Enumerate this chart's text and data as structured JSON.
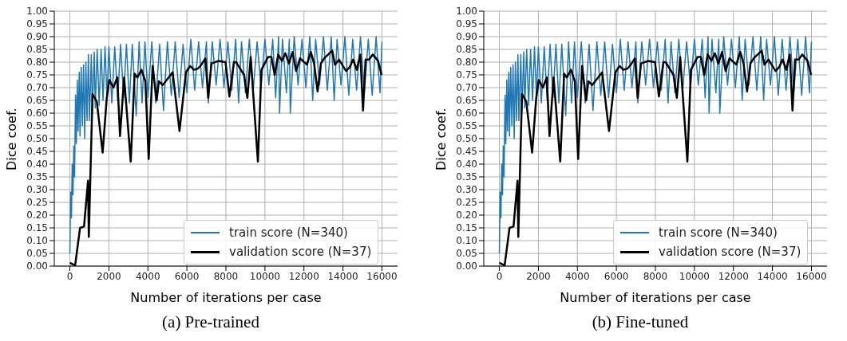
{
  "chart_data": [
    {
      "type": "line",
      "title": "(a) Pre-trained",
      "xlabel": "Number of iterations per case",
      "ylabel": "Dice coef.",
      "xlim": [
        -800,
        16800
      ],
      "xticks": [
        0,
        2000,
        4000,
        6000,
        8000,
        10000,
        12000,
        14000,
        16000
      ],
      "ylim": [
        0,
        1
      ],
      "yticks": [
        {
          "value": 0,
          "label": "0.00"
        },
        {
          "value": 0.05,
          "label": "0.05"
        },
        {
          "value": 0.1,
          "label": "0.10"
        },
        {
          "value": 0.15,
          "label": "0.15"
        },
        {
          "value": 0.2,
          "label": "0.20"
        },
        {
          "value": 0.25,
          "label": "0.25"
        },
        {
          "value": 0.3,
          "label": "0.30"
        },
        {
          "value": 0.35,
          "label": "0.35"
        },
        {
          "value": 0.4,
          "label": "0.40"
        },
        {
          "value": 0.45,
          "label": "0.45"
        },
        {
          "value": 0.5,
          "label": "0.50"
        },
        {
          "value": 0.55,
          "label": "0.55"
        },
        {
          "value": 0.6,
          "label": "0.60"
        },
        {
          "value": 0.65,
          "label": "0.65"
        },
        {
          "value": 0.7,
          "label": "0.70"
        },
        {
          "value": 0.75,
          "label": "0.75"
        },
        {
          "value": 0.8,
          "label": "0.80"
        },
        {
          "value": 0.85,
          "label": "0.85"
        },
        {
          "value": 0.9,
          "label": "0.90"
        },
        {
          "value": 0.95,
          "label": "0.95"
        },
        {
          "value": 1,
          "label": "1.00"
        }
      ],
      "grid": true,
      "legend": "bottom right",
      "marker": "none",
      "line_style": "solid",
      "series": [
        {
          "name": "train score (N=340)",
          "color": "#1f77b4",
          "x": [
            0,
            40,
            80,
            120,
            160,
            200,
            240,
            290,
            330,
            380,
            420,
            480,
            520,
            580,
            640,
            700,
            760,
            820,
            880,
            950,
            1000,
            1100,
            1150,
            1250,
            1300,
            1400,
            1500,
            1600,
            1700,
            1800,
            1900,
            2000,
            2150,
            2300,
            2450,
            2600,
            2750,
            2900,
            3050,
            3200,
            3400,
            3550,
            3700,
            3850,
            4000,
            4200,
            4400,
            4600,
            4800,
            5000,
            5200,
            5400,
            5600,
            5800,
            6000,
            6200,
            6400,
            6600,
            6800,
            7000,
            7100,
            7300,
            7500,
            7700,
            7900,
            8100,
            8300,
            8500,
            8650,
            8800,
            9000,
            9200,
            9400,
            9600,
            9800,
            10000,
            10200,
            10400,
            10550,
            10700,
            10750,
            10900,
            11100,
            11250,
            11300,
            11500,
            11700,
            11900,
            12100,
            12300,
            12450,
            12600,
            12800,
            13000,
            13200,
            13400,
            13550,
            13700,
            13900,
            14100,
            14300,
            14500,
            14700,
            14900,
            15100,
            15300,
            15500,
            15700,
            15900,
            16000
          ],
          "values": [
            0.05,
            0.29,
            0.19,
            0.4,
            0.28,
            0.47,
            0.35,
            0.67,
            0.48,
            0.73,
            0.53,
            0.76,
            0.51,
            0.78,
            0.55,
            0.79,
            0.5,
            0.8,
            0.57,
            0.83,
            0.57,
            0.83,
            0.6,
            0.84,
            0.62,
            0.85,
            0.63,
            0.85,
            0.65,
            0.86,
            0.66,
            0.86,
            0.64,
            0.86,
            0.65,
            0.87,
            0.66,
            0.87,
            0.64,
            0.87,
            0.59,
            0.88,
            0.64,
            0.88,
            0.66,
            0.88,
            0.64,
            0.87,
            0.61,
            0.88,
            0.67,
            0.88,
            0.66,
            0.87,
            0.68,
            0.89,
            0.69,
            0.88,
            0.7,
            0.88,
            0.64,
            0.88,
            0.71,
            0.89,
            0.7,
            0.88,
            0.69,
            0.89,
            0.64,
            0.88,
            0.68,
            0.89,
            0.69,
            0.88,
            0.7,
            0.89,
            0.71,
            0.89,
            0.66,
            0.9,
            0.6,
            0.89,
            0.68,
            0.89,
            0.6,
            0.9,
            0.71,
            0.89,
            0.7,
            0.9,
            0.65,
            0.89,
            0.71,
            0.9,
            0.69,
            0.9,
            0.65,
            0.89,
            0.71,
            0.9,
            0.67,
            0.89,
            0.69,
            0.9,
            0.68,
            0.89,
            0.67,
            0.9,
            0.68,
            0.88
          ]
        },
        {
          "name": "validation score (N=37)",
          "color": "#000000",
          "x": [
            0,
            270,
            520,
            725,
            930,
            970,
            1160,
            1380,
            1680,
            1890,
            2020,
            2230,
            2430,
            2570,
            2780,
            3120,
            3320,
            3460,
            3670,
            3870,
            4040,
            4240,
            4450,
            4560,
            4760,
            5270,
            5620,
            5950,
            6170,
            6360,
            6570,
            6740,
            6950,
            7090,
            7260,
            7640,
            7980,
            8180,
            8410,
            8520,
            8930,
            9100,
            9270,
            9640,
            9820,
            10160,
            10330,
            10500,
            10680,
            10870,
            11050,
            11230,
            11420,
            11600,
            11800,
            12150,
            12350,
            12520,
            12700,
            12870,
            13040,
            13450,
            13590,
            13800,
            14160,
            14340,
            14520,
            14710,
            14890,
            15030,
            15160,
            15340,
            15530,
            15800,
            15980
          ],
          "values": [
            0.013,
            0.003,
            0.15,
            0.155,
            0.335,
            0.115,
            0.675,
            0.645,
            0.445,
            0.66,
            0.73,
            0.7,
            0.74,
            0.51,
            0.74,
            0.41,
            0.755,
            0.74,
            0.77,
            0.725,
            0.42,
            0.785,
            0.65,
            0.725,
            0.71,
            0.76,
            0.53,
            0.76,
            0.785,
            0.77,
            0.775,
            0.79,
            0.815,
            0.66,
            0.795,
            0.805,
            0.8,
            0.665,
            0.8,
            0.8,
            0.75,
            0.66,
            0.82,
            0.41,
            0.77,
            0.82,
            0.82,
            0.75,
            0.83,
            0.805,
            0.835,
            0.795,
            0.84,
            0.765,
            0.815,
            0.79,
            0.84,
            0.795,
            0.685,
            0.795,
            0.815,
            0.845,
            0.79,
            0.81,
            0.765,
            0.78,
            0.81,
            0.77,
            0.83,
            0.61,
            0.81,
            0.81,
            0.83,
            0.805,
            0.75
          ]
        }
      ]
    },
    {
      "type": "line",
      "title": "(b) Fine-tuned",
      "xlabel": "Number of iterations per case",
      "ylabel": "Dice coef.",
      "xlim": [
        -800,
        16800
      ],
      "xticks": [
        0,
        2000,
        4000,
        6000,
        8000,
        10000,
        12000,
        14000,
        16000
      ],
      "ylim": [
        0,
        1
      ],
      "yticks": [
        {
          "value": 0,
          "label": "0.00"
        },
        {
          "value": 0.05,
          "label": "0.05"
        },
        {
          "value": 0.1,
          "label": "0.10"
        },
        {
          "value": 0.15,
          "label": "0.15"
        },
        {
          "value": 0.2,
          "label": "0.20"
        },
        {
          "value": 0.25,
          "label": "0.25"
        },
        {
          "value": 0.3,
          "label": "0.30"
        },
        {
          "value": 0.35,
          "label": "0.35"
        },
        {
          "value": 0.4,
          "label": "0.40"
        },
        {
          "value": 0.45,
          "label": "0.45"
        },
        {
          "value": 0.5,
          "label": "0.50"
        },
        {
          "value": 0.55,
          "label": "0.55"
        },
        {
          "value": 0.6,
          "label": "0.60"
        },
        {
          "value": 0.65,
          "label": "0.65"
        },
        {
          "value": 0.7,
          "label": "0.70"
        },
        {
          "value": 0.75,
          "label": "0.75"
        },
        {
          "value": 0.8,
          "label": "0.80"
        },
        {
          "value": 0.85,
          "label": "0.85"
        },
        {
          "value": 0.9,
          "label": "0.90"
        },
        {
          "value": 0.95,
          "label": "0.95"
        },
        {
          "value": 1,
          "label": "1.00"
        }
      ],
      "grid": true,
      "legend": "bottom right",
      "marker": "none",
      "line_style": "solid",
      "series": [
        {
          "name": "train score (N=340)",
          "color": "#1f77b4",
          "x": [
            0,
            40,
            80,
            120,
            160,
            200,
            240,
            290,
            330,
            380,
            420,
            480,
            520,
            580,
            640,
            700,
            760,
            820,
            880,
            950,
            1000,
            1100,
            1150,
            1250,
            1300,
            1400,
            1500,
            1600,
            1700,
            1800,
            1900,
            2000,
            2150,
            2300,
            2450,
            2600,
            2750,
            2900,
            3050,
            3200,
            3400,
            3550,
            3700,
            3850,
            4000,
            4200,
            4400,
            4600,
            4800,
            5000,
            5200,
            5400,
            5600,
            5800,
            6000,
            6200,
            6400,
            6600,
            6800,
            7000,
            7100,
            7300,
            7500,
            7700,
            7900,
            8100,
            8300,
            8500,
            8650,
            8800,
            9000,
            9200,
            9400,
            9600,
            9800,
            10000,
            10200,
            10400,
            10550,
            10700,
            10750,
            10900,
            11100,
            11250,
            11300,
            11500,
            11700,
            11900,
            12100,
            12300,
            12450,
            12600,
            12800,
            13000,
            13200,
            13400,
            13550,
            13700,
            13900,
            14100,
            14300,
            14500,
            14700,
            14900,
            15100,
            15300,
            15500,
            15700,
            15900,
            16000
          ],
          "values": [
            0.05,
            0.29,
            0.19,
            0.4,
            0.28,
            0.47,
            0.35,
            0.67,
            0.48,
            0.73,
            0.53,
            0.76,
            0.51,
            0.78,
            0.55,
            0.79,
            0.5,
            0.8,
            0.57,
            0.83,
            0.57,
            0.83,
            0.6,
            0.84,
            0.62,
            0.85,
            0.63,
            0.85,
            0.65,
            0.86,
            0.66,
            0.86,
            0.64,
            0.86,
            0.65,
            0.87,
            0.66,
            0.87,
            0.64,
            0.87,
            0.59,
            0.88,
            0.64,
            0.88,
            0.66,
            0.88,
            0.64,
            0.87,
            0.61,
            0.88,
            0.67,
            0.88,
            0.66,
            0.87,
            0.68,
            0.89,
            0.69,
            0.88,
            0.7,
            0.88,
            0.64,
            0.88,
            0.71,
            0.89,
            0.7,
            0.88,
            0.69,
            0.89,
            0.64,
            0.88,
            0.68,
            0.89,
            0.69,
            0.88,
            0.7,
            0.89,
            0.71,
            0.89,
            0.66,
            0.9,
            0.6,
            0.89,
            0.68,
            0.89,
            0.6,
            0.9,
            0.71,
            0.89,
            0.7,
            0.9,
            0.65,
            0.89,
            0.71,
            0.9,
            0.69,
            0.9,
            0.65,
            0.89,
            0.71,
            0.9,
            0.67,
            0.89,
            0.69,
            0.9,
            0.68,
            0.89,
            0.67,
            0.9,
            0.68,
            0.88
          ]
        },
        {
          "name": "validation score (N=37)",
          "color": "#000000",
          "x": [
            0,
            270,
            520,
            725,
            930,
            970,
            1160,
            1380,
            1680,
            1890,
            2020,
            2230,
            2430,
            2570,
            2780,
            3120,
            3320,
            3460,
            3670,
            3870,
            4040,
            4240,
            4450,
            4560,
            4760,
            5270,
            5620,
            5950,
            6170,
            6360,
            6570,
            6740,
            6950,
            7090,
            7260,
            7640,
            7980,
            8180,
            8410,
            8520,
            8930,
            9100,
            9270,
            9640,
            9820,
            10160,
            10330,
            10500,
            10680,
            10870,
            11050,
            11230,
            11420,
            11600,
            11800,
            12150,
            12350,
            12520,
            12700,
            12870,
            13040,
            13450,
            13590,
            13800,
            14160,
            14340,
            14520,
            14710,
            14890,
            15030,
            15160,
            15340,
            15530,
            15800,
            15980
          ],
          "values": [
            0.013,
            0.003,
            0.15,
            0.155,
            0.335,
            0.115,
            0.675,
            0.645,
            0.445,
            0.66,
            0.73,
            0.7,
            0.74,
            0.51,
            0.74,
            0.41,
            0.755,
            0.74,
            0.77,
            0.725,
            0.42,
            0.785,
            0.65,
            0.725,
            0.71,
            0.76,
            0.53,
            0.76,
            0.785,
            0.77,
            0.775,
            0.79,
            0.815,
            0.66,
            0.795,
            0.805,
            0.8,
            0.665,
            0.8,
            0.8,
            0.75,
            0.66,
            0.82,
            0.41,
            0.77,
            0.82,
            0.82,
            0.75,
            0.83,
            0.805,
            0.835,
            0.795,
            0.84,
            0.765,
            0.815,
            0.79,
            0.84,
            0.795,
            0.685,
            0.795,
            0.815,
            0.845,
            0.79,
            0.81,
            0.765,
            0.78,
            0.81,
            0.77,
            0.83,
            0.61,
            0.81,
            0.81,
            0.83,
            0.805,
            0.75
          ]
        }
      ]
    }
  ]
}
